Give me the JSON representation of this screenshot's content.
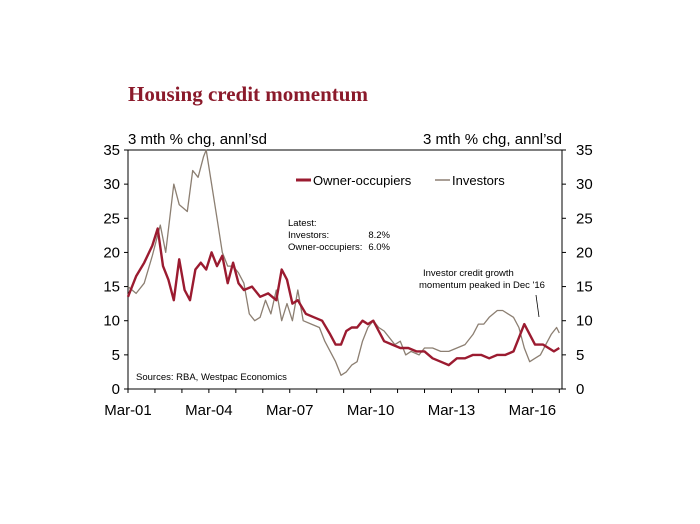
{
  "chart_data": {
    "type": "line",
    "title": "Housing credit momentum",
    "ylabel_left": "3 mth % chg, annl’sd",
    "ylabel_right": "3 mth % chg, annl’sd",
    "ylim": [
      0,
      35
    ],
    "y_ticks": [
      "0",
      "5",
      "10",
      "15",
      "20",
      "25",
      "30",
      "35"
    ],
    "x_ticks": [
      "Mar-01",
      "Mar-04",
      "Mar-07",
      "Mar-10",
      "Mar-13",
      "Mar-16"
    ],
    "x_range": [
      2001.0,
      2017.1
    ],
    "grid": false,
    "legend_position": "top-right",
    "series": [
      {
        "name": "Owner-occupiers",
        "color": "#9b1b30",
        "points": [
          [
            2001.0,
            13.5
          ],
          [
            2001.3,
            16.5
          ],
          [
            2001.6,
            18.5
          ],
          [
            2001.9,
            21.0
          ],
          [
            2002.1,
            23.5
          ],
          [
            2002.3,
            18.0
          ],
          [
            2002.5,
            16.0
          ],
          [
            2002.7,
            13.0
          ],
          [
            2002.9,
            19.0
          ],
          [
            2003.1,
            14.5
          ],
          [
            2003.3,
            13.0
          ],
          [
            2003.5,
            17.5
          ],
          [
            2003.7,
            18.5
          ],
          [
            2003.9,
            17.5
          ],
          [
            2004.1,
            20.0
          ],
          [
            2004.3,
            18.0
          ],
          [
            2004.5,
            19.5
          ],
          [
            2004.7,
            15.5
          ],
          [
            2004.9,
            18.5
          ],
          [
            2005.1,
            15.5
          ],
          [
            2005.3,
            14.5
          ],
          [
            2005.6,
            15.0
          ],
          [
            2005.9,
            13.5
          ],
          [
            2006.2,
            14.0
          ],
          [
            2006.5,
            13.0
          ],
          [
            2006.7,
            17.5
          ],
          [
            2006.9,
            16.0
          ],
          [
            2007.1,
            12.5
          ],
          [
            2007.3,
            13.0
          ],
          [
            2007.6,
            11.0
          ],
          [
            2007.9,
            10.5
          ],
          [
            2008.2,
            10.0
          ],
          [
            2008.5,
            8.0
          ],
          [
            2008.7,
            6.5
          ],
          [
            2008.9,
            6.5
          ],
          [
            2009.1,
            8.5
          ],
          [
            2009.3,
            9.0
          ],
          [
            2009.5,
            9.0
          ],
          [
            2009.7,
            10.0
          ],
          [
            2009.9,
            9.5
          ],
          [
            2010.1,
            10.0
          ],
          [
            2010.3,
            8.5
          ],
          [
            2010.5,
            7.0
          ],
          [
            2010.8,
            6.5
          ],
          [
            2011.1,
            6.0
          ],
          [
            2011.4,
            6.0
          ],
          [
            2011.7,
            5.5
          ],
          [
            2012.0,
            5.5
          ],
          [
            2012.3,
            4.5
          ],
          [
            2012.6,
            4.0
          ],
          [
            2012.9,
            3.5
          ],
          [
            2013.2,
            4.5
          ],
          [
            2013.5,
            4.5
          ],
          [
            2013.8,
            5.0
          ],
          [
            2014.1,
            5.0
          ],
          [
            2014.4,
            4.5
          ],
          [
            2014.7,
            5.0
          ],
          [
            2015.0,
            5.0
          ],
          [
            2015.3,
            5.5
          ],
          [
            2015.5,
            7.5
          ],
          [
            2015.7,
            9.5
          ],
          [
            2015.9,
            8.0
          ],
          [
            2016.1,
            6.5
          ],
          [
            2016.4,
            6.5
          ],
          [
            2016.6,
            6.0
          ],
          [
            2016.8,
            5.5
          ],
          [
            2017.0,
            6.0
          ]
        ]
      },
      {
        "name": "Investors",
        "color": "#8c7f72",
        "points": [
          [
            2001.0,
            15.0
          ],
          [
            2001.3,
            14.0
          ],
          [
            2001.6,
            15.5
          ],
          [
            2001.9,
            19.5
          ],
          [
            2002.2,
            24.0
          ],
          [
            2002.4,
            20.0
          ],
          [
            2002.7,
            30.0
          ],
          [
            2002.9,
            27.0
          ],
          [
            2003.2,
            26.0
          ],
          [
            2003.4,
            32.0
          ],
          [
            2003.6,
            31.0
          ],
          [
            2003.8,
            34.0
          ],
          [
            2003.9,
            35.0
          ],
          [
            2004.1,
            30.0
          ],
          [
            2004.3,
            25.0
          ],
          [
            2004.5,
            20.0
          ],
          [
            2004.7,
            18.0
          ],
          [
            2004.9,
            18.0
          ],
          [
            2005.1,
            17.0
          ],
          [
            2005.3,
            15.5
          ],
          [
            2005.5,
            11.0
          ],
          [
            2005.7,
            10.0
          ],
          [
            2005.9,
            10.5
          ],
          [
            2006.1,
            13.0
          ],
          [
            2006.3,
            11.0
          ],
          [
            2006.5,
            14.5
          ],
          [
            2006.7,
            10.0
          ],
          [
            2006.9,
            12.5
          ],
          [
            2007.1,
            10.0
          ],
          [
            2007.3,
            14.5
          ],
          [
            2007.5,
            10.0
          ],
          [
            2007.8,
            9.5
          ],
          [
            2008.1,
            9.0
          ],
          [
            2008.3,
            7.0
          ],
          [
            2008.5,
            5.5
          ],
          [
            2008.7,
            4.0
          ],
          [
            2008.9,
            2.0
          ],
          [
            2009.1,
            2.5
          ],
          [
            2009.3,
            3.5
          ],
          [
            2009.5,
            4.0
          ],
          [
            2009.7,
            7.0
          ],
          [
            2009.9,
            9.0
          ],
          [
            2010.1,
            10.0
          ],
          [
            2010.3,
            9.0
          ],
          [
            2010.5,
            8.5
          ],
          [
            2010.7,
            7.5
          ],
          [
            2010.9,
            6.5
          ],
          [
            2011.1,
            7.0
          ],
          [
            2011.3,
            5.0
          ],
          [
            2011.5,
            5.5
          ],
          [
            2011.8,
            5.0
          ],
          [
            2012.0,
            6.0
          ],
          [
            2012.3,
            6.0
          ],
          [
            2012.6,
            5.5
          ],
          [
            2012.9,
            5.5
          ],
          [
            2013.2,
            6.0
          ],
          [
            2013.5,
            6.5
          ],
          [
            2013.8,
            8.0
          ],
          [
            2014.0,
            9.5
          ],
          [
            2014.2,
            9.5
          ],
          [
            2014.4,
            10.5
          ],
          [
            2014.7,
            11.5
          ],
          [
            2014.9,
            11.5
          ],
          [
            2015.1,
            11.0
          ],
          [
            2015.3,
            10.5
          ],
          [
            2015.5,
            9.0
          ],
          [
            2015.7,
            6.0
          ],
          [
            2015.9,
            4.0
          ],
          [
            2016.1,
            4.5
          ],
          [
            2016.3,
            5.0
          ],
          [
            2016.5,
            6.5
          ],
          [
            2016.7,
            8.0
          ],
          [
            2016.9,
            9.0
          ],
          [
            2017.0,
            8.2
          ]
        ]
      }
    ],
    "annotations": {
      "latest_title": "Latest:",
      "latest_investors_label": "Investors:",
      "latest_investors_value": "8.2%",
      "latest_oo_label": "Owner-occupiers:",
      "latest_oo_value": "6.0%",
      "peak_line1": "Investor credit growth",
      "peak_line2": "momentum peaked in Dec '16",
      "source": "Sources: RBA, Westpac Economics"
    }
  }
}
